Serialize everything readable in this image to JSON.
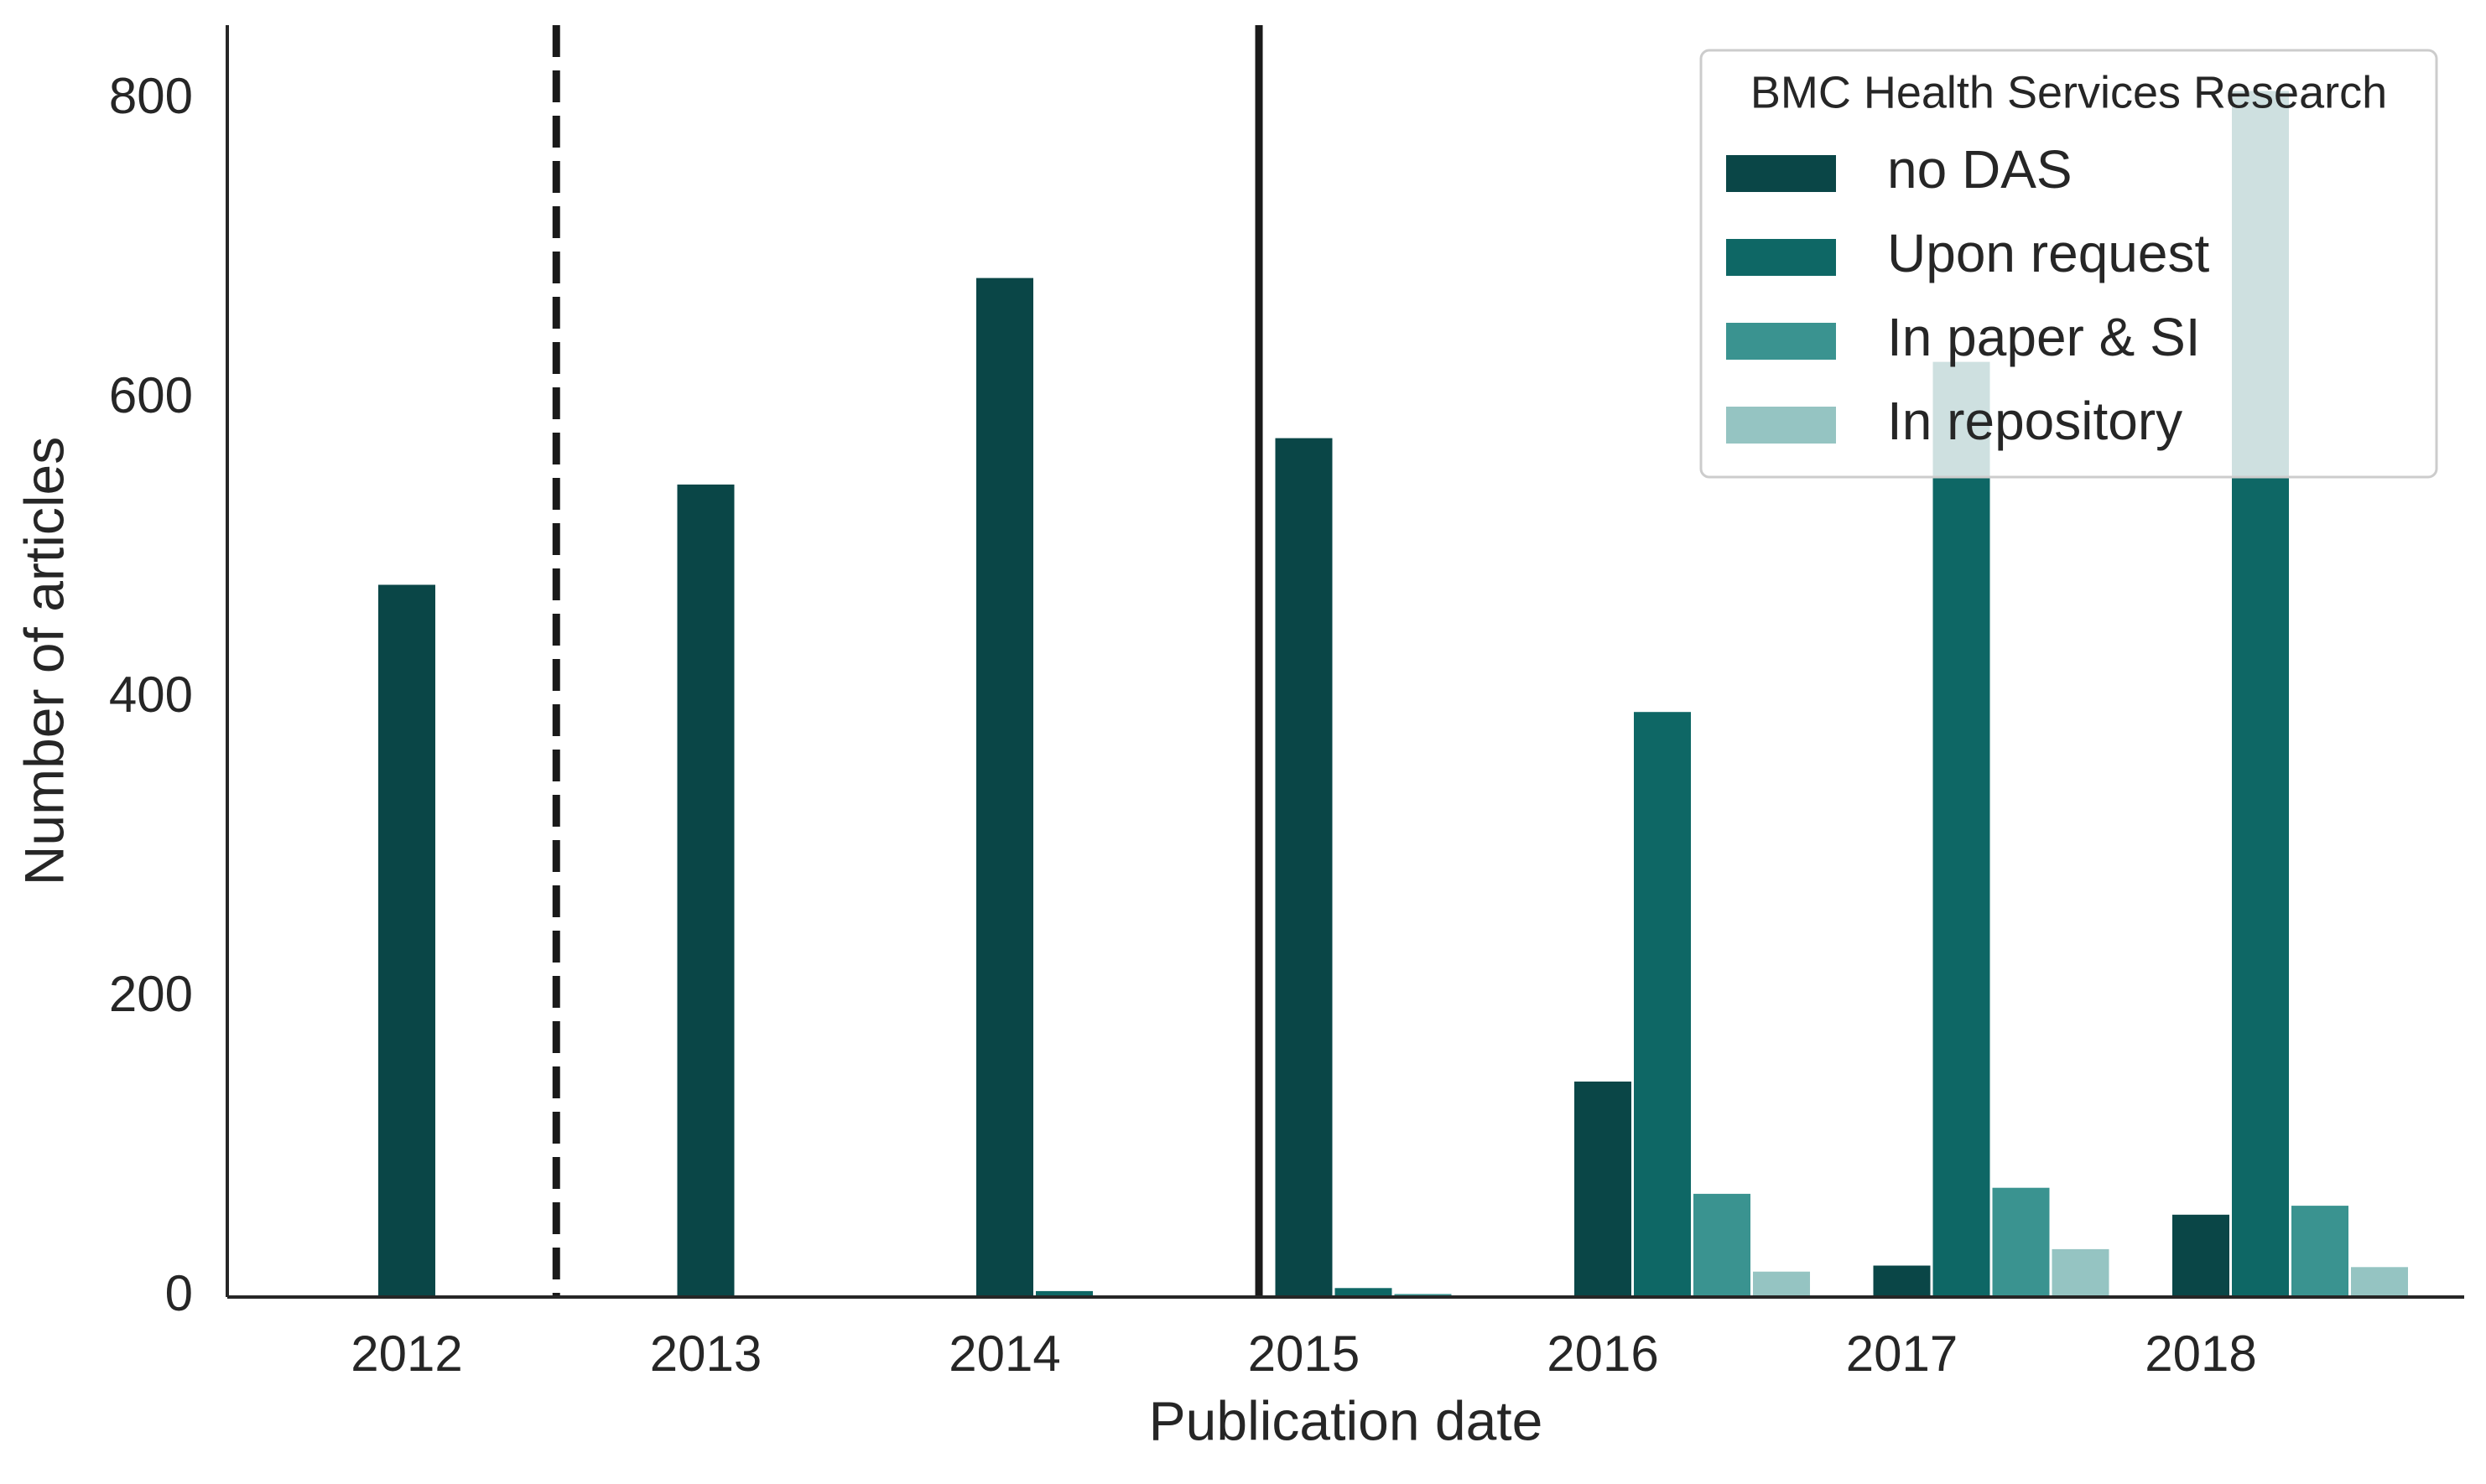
{
  "chart_data": {
    "type": "bar",
    "xlabel": "Publication date",
    "ylabel": "Number of articles",
    "categories": [
      "2012",
      "2013",
      "2014",
      "2015",
      "2016",
      "2017",
      "2018"
    ],
    "ylim": [
      0,
      850
    ],
    "yticks": [
      0,
      200,
      400,
      600,
      800
    ],
    "series": [
      {
        "name": "no DAS",
        "color": "#0a4647",
        "values": [
          476,
          543,
          681,
          574,
          144,
          21,
          55
        ]
      },
      {
        "name": "Upon request",
        "color": "#0e6765",
        "values": [
          0,
          0,
          4,
          6,
          391,
          625,
          806
        ]
      },
      {
        "name": "In paper & SI",
        "color": "#3a9390",
        "values": [
          0,
          0,
          0,
          2,
          69,
          73,
          61
        ]
      },
      {
        "name": "In repository",
        "color": "#95c4c2",
        "values": [
          0,
          0,
          0,
          0,
          17,
          32,
          20
        ]
      }
    ],
    "vertical_lines": [
      {
        "x": 2012.5,
        "style": "dashed"
      },
      {
        "x": 2014.85,
        "style": "solid"
      }
    ],
    "legend": {
      "title": "BMC Health Services Research",
      "placement": "top-right"
    },
    "grid": false
  }
}
